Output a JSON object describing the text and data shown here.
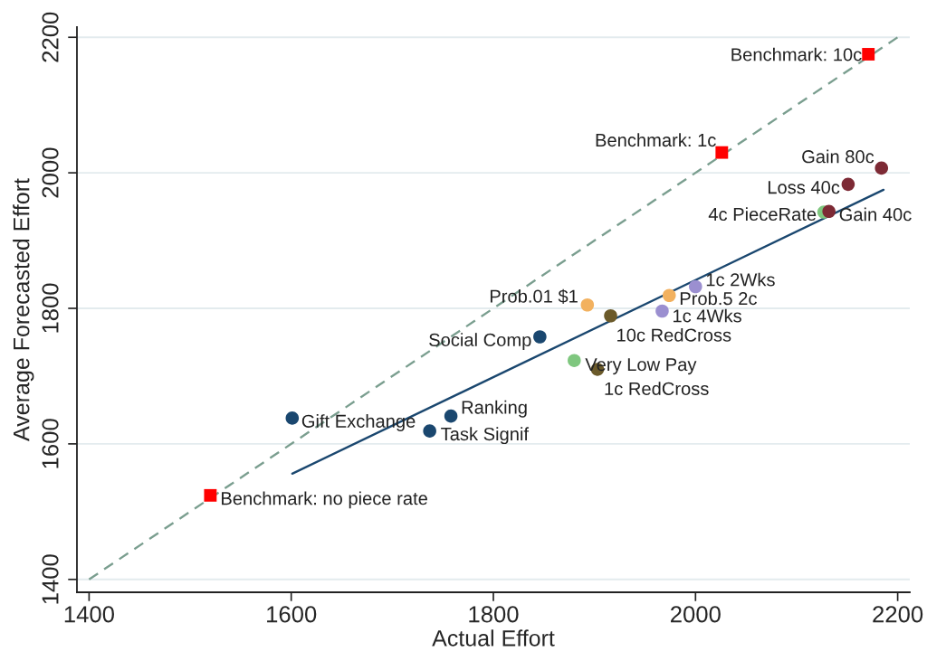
{
  "chart_data": {
    "type": "scatter",
    "xlabel": "Actual Effort",
    "ylabel": "Average Forecasted Effort",
    "xlim": [
      1388,
      2212
    ],
    "ylim": [
      1381,
      2215
    ],
    "xticks": [
      1400,
      1600,
      1800,
      2000,
      2200
    ],
    "yticks": [
      1400,
      1600,
      1800,
      2000,
      2200
    ],
    "grid": "y",
    "marker": "circle",
    "series": [
      {
        "type": "line",
        "color": "#7a9e8f",
        "x": [
          1400,
          2200
        ],
        "values": [
          1400,
          2200
        ],
        "line_style": "dashed",
        "marker": "none"
      },
      {
        "type": "line",
        "color": "#1a476f",
        "x": [
          1601,
          2186
        ],
        "values": [
          1556,
          1975
        ],
        "line_style": "solid",
        "marker": "none"
      },
      {
        "color": "#1a476f",
        "x": [
          1601,
          1737,
          1758,
          1846
        ],
        "values": [
          1638,
          1619,
          1641,
          1758
        ]
      },
      {
        "color": "#7fc77f",
        "x": [
          1880,
          2127
        ],
        "values": [
          1723,
          1942
        ]
      },
      {
        "color": "#f2b15f",
        "x": [
          1893,
          1974
        ],
        "values": [
          1805,
          1819
        ]
      },
      {
        "color": "#6b5a2a",
        "x": [
          1903,
          1916
        ],
        "values": [
          1710,
          1789
        ]
      },
      {
        "color": "#9b8fd0",
        "x": [
          1967,
          2000
        ],
        "values": [
          1796,
          1832
        ]
      },
      {
        "color": "#7d2a35",
        "x": [
          2132,
          2151,
          2184
        ],
        "values": [
          1943,
          1983,
          2007
        ]
      },
      {
        "color": "#ff0000",
        "marker": "square",
        "x": [
          1520,
          2026,
          2171
        ],
        "values": [
          1524,
          2030,
          2175
        ]
      }
    ],
    "annotations": [
      {
        "text": "Benchmark: 10c",
        "x": 2171,
        "y": 2175
      },
      {
        "text": "Benchmark: 1c",
        "x": 2026,
        "y": 2030
      },
      {
        "text": "Benchmark: no piece rate",
        "x": 1520,
        "y": 1524
      },
      {
        "text": "Gift Exchange",
        "x": 1601,
        "y": 1638
      },
      {
        "text": "Task Signif",
        "x": 1737,
        "y": 1619
      },
      {
        "text": "Ranking",
        "x": 1758,
        "y": 1641
      },
      {
        "text": "Social Comp",
        "x": 1846,
        "y": 1758
      },
      {
        "text": "Very Low Pay",
        "x": 1880,
        "y": 1723
      },
      {
        "text": "1c RedCross",
        "x": 1903,
        "y": 1710
      },
      {
        "text": "10c RedCross",
        "x": 1916,
        "y": 1789
      },
      {
        "text": "Prob.01 $1",
        "x": 1893,
        "y": 1805
      },
      {
        "text": "Prob.5 2c",
        "x": 1974,
        "y": 1819
      },
      {
        "text": "1c 4Wks",
        "x": 1967,
        "y": 1796
      },
      {
        "text": "1c 2Wks",
        "x": 2000,
        "y": 1832
      },
      {
        "text": "4c PieceRate",
        "x": 2127,
        "y": 1942
      },
      {
        "text": "Gain 40c",
        "x": 2132,
        "y": 1943
      },
      {
        "text": "Loss 40c",
        "x": 2151,
        "y": 1983
      },
      {
        "text": "Gain 80c",
        "x": 2184,
        "y": 2007
      }
    ]
  }
}
